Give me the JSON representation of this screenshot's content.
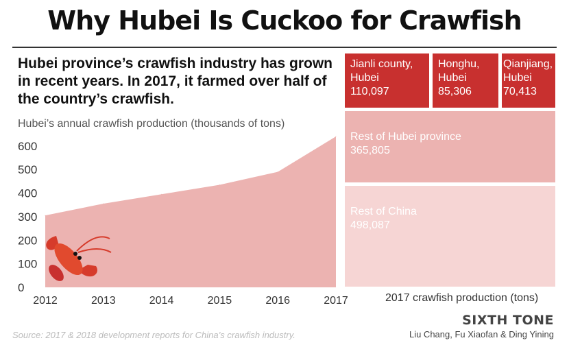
{
  "title": "Why Hubei Is Cuckoo for Crawfish",
  "subtitle": "Hubei province’s crawfish industry has grown in recent years. In 2017, it farmed over half of the country’s crawfish.",
  "brand": "SIXTH TONE",
  "source": "Source: 2017 & 2018 development reports for China’s crawfish industry.",
  "credits": "Liu Chang, Fu Xiaofan & Ding Yining",
  "colors": {
    "dark_red": "#c8302f",
    "mid_pink": "#ecb3b1",
    "light_pink": "#f6d5d4",
    "area": "#ecb3b1"
  },
  "chart_data": [
    {
      "type": "area",
      "title": "Hubei’s annual crawfish production (thousands of tons)",
      "x": [
        "2012",
        "2013",
        "2014",
        "2015",
        "2016",
        "2017"
      ],
      "y_ticks": [
        "0",
        "100",
        "200",
        "300",
        "400",
        "500",
        "600"
      ],
      "ylim": [
        0,
        640
      ],
      "series": [
        {
          "values": [
            305,
            355,
            395,
            435,
            490,
            640
          ]
        }
      ],
      "grid": false
    },
    {
      "type": "treemap",
      "xlabel": "2017 crawfish production (tons)",
      "cells": [
        {
          "label": "Jianli county, Hubei",
          "value": "110,097",
          "color": "#c8302f"
        },
        {
          "label": "Honghu, Hubei",
          "value": "85,306",
          "color": "#c8302f"
        },
        {
          "label": "Qianjiang, Hubei",
          "value": "70,413",
          "color": "#c8302f"
        },
        {
          "label": "Rest of Hubei province",
          "value": "365,805",
          "color": "#ecb3b1"
        },
        {
          "label": "Rest of China",
          "value": "498,087",
          "color": "#f6d5d4"
        }
      ]
    }
  ],
  "icons": [
    "crawfish-left-icon",
    "crawfish-right-icon"
  ]
}
